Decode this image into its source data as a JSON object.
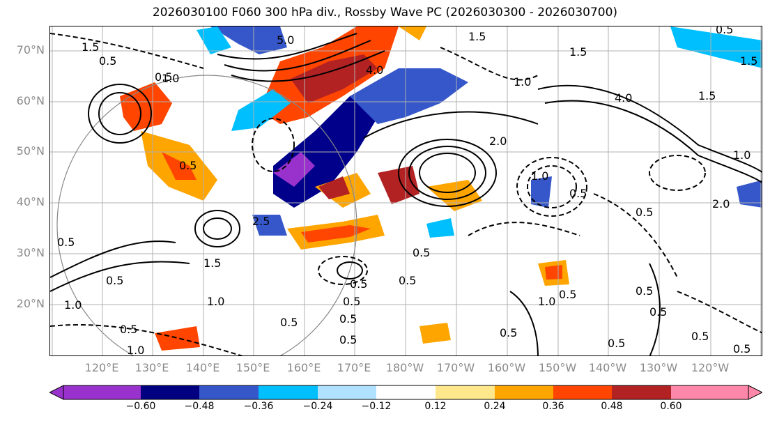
{
  "title": "2026030100 F060 300 hPa div., Rossby Wave PC (2026030300 - 2026030700)",
  "lat_labels": [
    "70°N",
    "60°N",
    "50°N",
    "40°N",
    "30°N",
    "20°N"
  ],
  "lon_labels": [
    "120°E",
    "130°E",
    "140°E",
    "150°E",
    "160°E",
    "170°E",
    "180°W",
    "170°W",
    "160°W",
    "150°W",
    "140°W",
    "130°W",
    "120°W"
  ],
  "colorbar": {
    "ticks": [
      "−0.60",
      "−0.48",
      "−0.36",
      "−0.24",
      "−0.12",
      "0.12",
      "0.24",
      "0.36",
      "0.48",
      "0.60"
    ],
    "colors": [
      "#9932cc",
      "#000080",
      "#3557c9",
      "#00bfff",
      "#b0e2ff",
      "#ffffff",
      "#ffe78c",
      "#ffa500",
      "#ff4500",
      "#b22222",
      "#ff88aa"
    ]
  },
  "contour_labels": [
    "1.5",
    "0.5",
    "5.0",
    "1.5",
    "0.5",
    "1.5",
    "1.5",
    "1.0",
    "0.5",
    "4.0",
    "4.0",
    "2.0",
    "1.0",
    "0.5",
    "0.5",
    "0.5",
    "0.5",
    "0.5",
    "0.5",
    "1.0",
    "0.5",
    "0.5",
    "0.5",
    "0.5",
    "1.0",
    "1.5",
    "0.5",
    "0.5",
    "0.5",
    "0.5",
    "0.5",
    "1.0",
    "0.5",
    "2.0",
    "2.5",
    "1.0",
    "0.5",
    "0.5",
    "1.0",
    "0.5",
    "0.5",
    "1.5",
    "1.0"
  ],
  "colors": {
    "axis_label": "#8a8a8a",
    "grid": "#b0b0b0",
    "coast": "#888888"
  }
}
